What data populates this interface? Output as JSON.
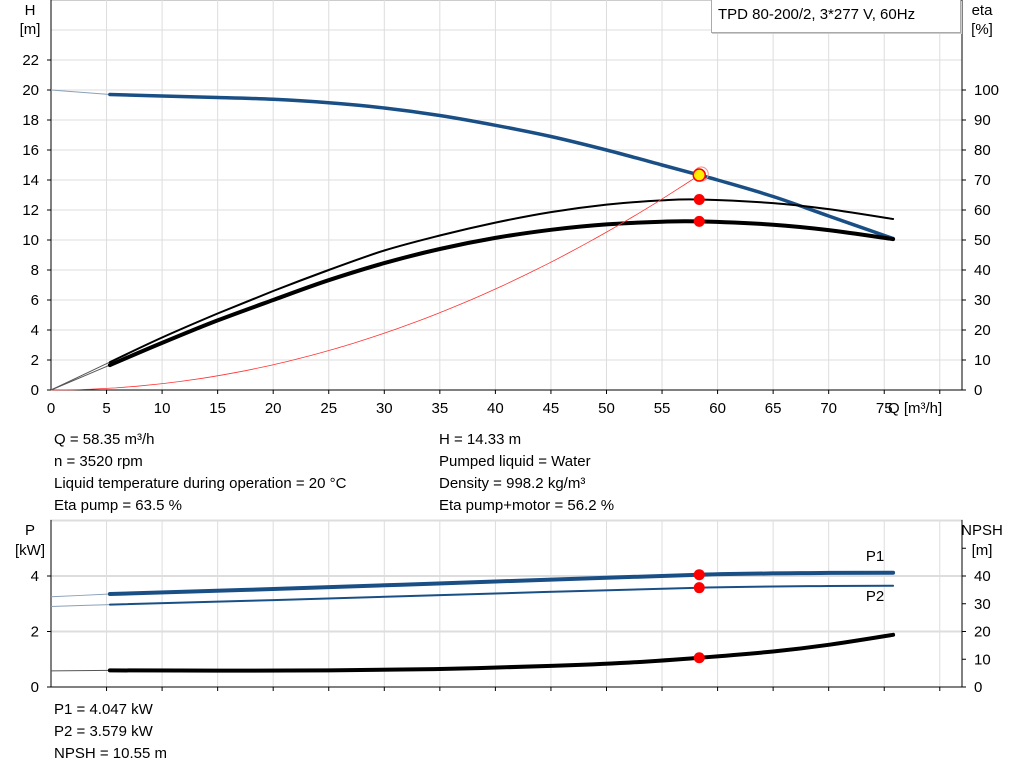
{
  "chart_data": [
    {
      "type": "line",
      "title": "TPD 80-200/2, 3*277 V, 60Hz",
      "xlabel": "Q [m³/h]",
      "ylabel": "H\n[m]",
      "ylabel_left": [
        "H",
        "[m]"
      ],
      "ylabel_right": [
        "eta",
        "[%]"
      ],
      "xlim": [
        0,
        82
      ],
      "ylim": [
        0,
        26
      ],
      "ylim_right": [
        0,
        130
      ],
      "xticks": [
        0,
        5,
        10,
        15,
        20,
        25,
        30,
        35,
        40,
        45,
        50,
        55,
        60,
        65,
        70,
        75
      ],
      "yticks": [
        0,
        2,
        4,
        6,
        8,
        10,
        12,
        14,
        16,
        18,
        20,
        22
      ],
      "yticks_right": [
        0,
        10,
        20,
        30,
        40,
        50,
        60,
        70,
        80,
        90,
        100
      ],
      "grid": true,
      "series": [
        {
          "key": "H",
          "axis": "left",
          "color": "#1a4f86",
          "x": [
            5.3,
            10,
            15,
            20,
            25,
            30,
            35,
            40,
            45,
            50,
            55,
            58.35,
            60,
            65,
            70,
            75.8
          ],
          "y": [
            19.7,
            19.6,
            19.5,
            19.38,
            19.15,
            18.8,
            18.3,
            17.65,
            16.9,
            16.0,
            15.0,
            14.33,
            14.0,
            12.9,
            11.6,
            10.1
          ],
          "extrapolated": {
            "x": [
              0,
              5.3
            ],
            "y": [
              20,
              19.7
            ]
          }
        },
        {
          "key": "eta_pump",
          "axis": "right",
          "color": "#000000",
          "x": [
            5.3,
            10,
            15,
            20,
            25,
            30,
            35,
            40,
            45,
            50,
            55,
            58.35,
            65,
            70,
            75.8
          ],
          "y": [
            9.3,
            17.5,
            25.5,
            33,
            40,
            46.5,
            51.5,
            55.8,
            59.3,
            61.8,
            63.2,
            63.5,
            62.3,
            60.3,
            57
          ],
          "extrapolated": {
            "x": [
              0,
              5.3
            ],
            "y": [
              0,
              9.3
            ]
          }
        },
        {
          "key": "eta_pump_motor",
          "axis": "right",
          "color": "#000000",
          "x": [
            5.3,
            10,
            15,
            20,
            25,
            30,
            35,
            40,
            45,
            50,
            55,
            58.35,
            65,
            70,
            75.8
          ],
          "y": [
            8.3,
            15.7,
            23.2,
            30,
            36.6,
            42.3,
            47,
            50.7,
            53.4,
            55.2,
            56.1,
            56.2,
            55.1,
            53.3,
            50.3
          ],
          "extrapolated": {
            "x": [
              0,
              5.3
            ],
            "y": [
              0,
              8.3
            ]
          }
        },
        {
          "key": "system_curve",
          "axis": "left",
          "color": "#ff3333",
          "equation": "H = 0.00421·Q²",
          "x_range": [
            0,
            58.35
          ]
        }
      ],
      "operating_points": [
        {
          "series": "H",
          "x": 58.35,
          "y": 14.33,
          "color": "#ffee00"
        },
        {
          "series": "eta_pump",
          "x": 58.35,
          "y": 63.5,
          "color": "#ff0000"
        },
        {
          "series": "eta_pump_motor",
          "x": 58.35,
          "y": 56.2,
          "color": "#ff0000"
        }
      ]
    },
    {
      "type": "line",
      "ylabel_left": [
        "P",
        "[kW]"
      ],
      "ylabel_right": [
        "NPSH",
        "[m]"
      ],
      "xlim": [
        0,
        82
      ],
      "ylim": [
        0,
        6
      ],
      "ylim_right": [
        0,
        60
      ],
      "yticks": [
        0,
        2,
        4
      ],
      "yticks_right": [
        0,
        10,
        20,
        30,
        40
      ],
      "grid": true,
      "series": [
        {
          "key": "P1",
          "name": "P1",
          "axis": "left",
          "color": "#1a4f86",
          "x": [
            5.3,
            20,
            40,
            58.35,
            70,
            75.8
          ],
          "y": [
            3.35,
            3.53,
            3.8,
            4.047,
            4.11,
            4.12
          ],
          "extrapolated": {
            "x": [
              0,
              5.3
            ],
            "y": [
              3.25,
              3.35
            ]
          }
        },
        {
          "key": "P2",
          "name": "P2",
          "axis": "left",
          "color": "#1a4f86",
          "x": [
            5.3,
            20,
            40,
            58.35,
            70,
            75.8
          ],
          "y": [
            2.97,
            3.13,
            3.37,
            3.579,
            3.64,
            3.65
          ],
          "extrapolated": {
            "x": [
              0,
              5.3
            ],
            "y": [
              2.9,
              2.97
            ]
          }
        },
        {
          "key": "NPSH",
          "axis": "right",
          "color": "#000000",
          "x": [
            5.3,
            15,
            25,
            35,
            45,
            52,
            58.35,
            65,
            70,
            75.8
          ],
          "y": [
            6.0,
            5.9,
            6.0,
            6.5,
            7.6,
            8.8,
            10.55,
            12.8,
            15.2,
            18.8
          ],
          "extrapolated": {
            "x": [
              0,
              5.3
            ],
            "y": [
              5.8,
              6.0
            ]
          }
        }
      ],
      "operating_points": [
        {
          "series": "P1",
          "x": 58.35,
          "y": 4.047,
          "color": "#ff0000"
        },
        {
          "series": "P2",
          "x": 58.35,
          "y": 3.579,
          "color": "#ff0000"
        },
        {
          "series": "NPSH",
          "x": 58.35,
          "y": 10.55,
          "color": "#ff0000"
        }
      ]
    }
  ],
  "info_top": {
    "left": [
      "Q = 58.35 m³/h",
      "n = 3520 rpm",
      "Liquid temperature during operation = 20 °C",
      "Eta pump = 63.5 %"
    ],
    "right": [
      "H = 14.33 m",
      "Pumped liquid = Water",
      "Density = 998.2 kg/m³",
      "Eta pump+motor = 56.2 %"
    ]
  },
  "info_bottom": [
    "P1 = 4.047 kW",
    "P2 = 3.579 kW",
    "NPSH = 10.55 m"
  ]
}
